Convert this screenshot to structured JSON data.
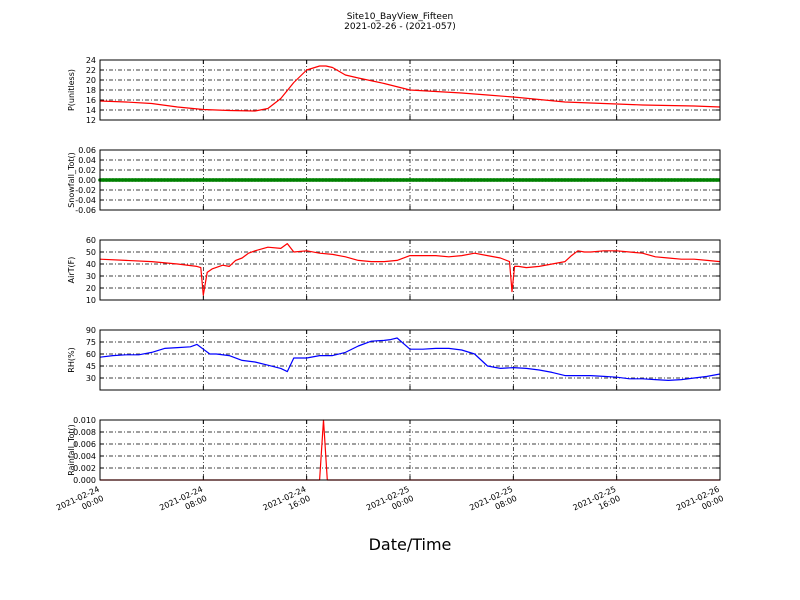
{
  "header": {
    "title": "Site10_BayView_Fifteen",
    "subtitle": "2021-02-26 - (2021-057)"
  },
  "xaxis": {
    "label": "Date/Time",
    "ticks": [
      {
        "x": 0,
        "line1": "2021-02-24",
        "line2": "00:00"
      },
      {
        "x": 8,
        "line1": "2021-02-24",
        "line2": "08:00"
      },
      {
        "x": 16,
        "line1": "2021-02-24",
        "line2": "16:00"
      },
      {
        "x": 24,
        "line1": "2021-02-25",
        "line2": "00:00"
      },
      {
        "x": 32,
        "line1": "2021-02-25",
        "line2": "08:00"
      },
      {
        "x": 40,
        "line1": "2021-02-25",
        "line2": "16:00"
      },
      {
        "x": 48,
        "line1": "2021-02-26",
        "line2": "00:00"
      }
    ]
  },
  "chart_data": [
    {
      "type": "line",
      "ylabel": "P(unitless)",
      "ylim": [
        12,
        24
      ],
      "yticks": [
        "12",
        "14",
        "16",
        "18",
        "20",
        "22",
        "24"
      ],
      "ytick_values": [
        12,
        14,
        16,
        18,
        20,
        22,
        24
      ],
      "color": "#ff0000",
      "grid": true,
      "x": [
        0,
        2,
        4,
        6,
        8,
        10,
        12,
        13,
        14,
        15,
        16,
        17,
        17.5,
        18,
        19,
        20,
        22,
        24,
        26,
        28,
        30,
        32,
        34,
        36,
        38,
        40,
        42,
        44,
        46,
        48
      ],
      "y": [
        15.8,
        15.6,
        15.3,
        14.6,
        14.1,
        13.9,
        13.8,
        14.3,
        16.3,
        19.5,
        22,
        22.8,
        22.8,
        22.5,
        21,
        20.4,
        19.3,
        18,
        17.7,
        17.4,
        17,
        16.6,
        16.1,
        15.6,
        15.4,
        15.2,
        15,
        14.9,
        14.8,
        14.6
      ]
    },
    {
      "type": "scatter",
      "ylabel": "Snowfall_Tot()",
      "ylim": [
        -0.06,
        0.06
      ],
      "yticks": [
        "-0.06",
        "-0.04",
        "-0.02",
        "0.00",
        "0.02",
        "0.04",
        "0.06"
      ],
      "ytick_values": [
        -0.06,
        -0.04,
        -0.02,
        0,
        0.02,
        0.04,
        0.06
      ],
      "color": "#008000",
      "grid": true,
      "x": [
        0,
        1,
        2,
        3,
        4,
        5,
        6,
        7,
        8,
        9,
        10,
        11,
        12,
        13,
        14,
        15,
        16,
        17,
        18,
        19,
        20,
        21,
        22,
        23,
        24,
        25,
        26,
        27,
        28,
        29,
        30,
        31,
        32,
        33,
        34,
        35,
        36,
        37,
        38,
        39,
        40,
        41,
        42,
        43,
        44,
        45,
        46,
        47,
        48
      ],
      "y": [
        0,
        0,
        0,
        0,
        0,
        0,
        0,
        0,
        0,
        0,
        0,
        0,
        0,
        0,
        0,
        0,
        0,
        0,
        0,
        0,
        0,
        0,
        0,
        0,
        0,
        0,
        0,
        0,
        0,
        0,
        0,
        0,
        0,
        0,
        0,
        0,
        0,
        0,
        0,
        0,
        0,
        0,
        0,
        0,
        0,
        0,
        0,
        0,
        0
      ]
    },
    {
      "type": "line",
      "ylabel": "AirT(F)",
      "ylim": [
        10,
        60
      ],
      "yticks": [
        "10",
        "20",
        "30",
        "40",
        "50",
        "60"
      ],
      "ytick_values": [
        10,
        20,
        30,
        40,
        50,
        60
      ],
      "color": "#ff0000",
      "grid": true,
      "x": [
        0,
        2,
        4,
        6,
        7.5,
        7.8,
        8,
        8.3,
        8.7,
        9.5,
        10,
        10.5,
        11,
        11.5,
        12,
        13,
        14,
        14.5,
        15,
        16,
        17,
        18,
        19,
        20,
        21,
        22,
        23,
        24,
        25,
        26,
        27,
        28,
        29,
        30,
        31,
        31.7,
        31.9,
        32.1,
        32.4,
        33,
        34,
        35,
        36,
        36.5,
        37,
        37.5,
        38,
        39,
        40,
        41,
        42,
        43,
        44,
        45,
        46,
        47,
        48
      ],
      "y": [
        44,
        43,
        42,
        40,
        38,
        37,
        14,
        33,
        36,
        39,
        38,
        43,
        45,
        49,
        51,
        54,
        53,
        57,
        50,
        51,
        49,
        48,
        46,
        43,
        42,
        42,
        43,
        47,
        47,
        47,
        46,
        47,
        49,
        47,
        45,
        42,
        17,
        38,
        38,
        37,
        38,
        40,
        42,
        47,
        51,
        50,
        50,
        51,
        51,
        50,
        49,
        46,
        45,
        44,
        44,
        43,
        42
      ]
    },
    {
      "type": "line",
      "ylabel": "RH(%)",
      "ylim": [
        15,
        90
      ],
      "yticks": [
        "30",
        "45",
        "60",
        "75",
        "90"
      ],
      "ytick_values": [
        30,
        45,
        60,
        75,
        90
      ],
      "color": "#0000ff",
      "grid": true,
      "x": [
        0,
        1,
        2,
        3,
        4,
        5,
        6,
        7,
        7.5,
        8,
        8.5,
        9,
        10,
        11,
        12,
        13,
        14,
        14.5,
        15,
        16,
        17,
        18,
        19,
        20,
        21,
        22,
        22.5,
        23,
        24,
        25,
        26,
        27,
        28,
        29,
        30,
        31,
        32,
        33,
        34,
        35,
        36,
        37,
        38,
        39,
        40,
        41,
        42,
        43,
        44,
        45,
        46,
        47,
        48
      ],
      "y": [
        56,
        58,
        59,
        59,
        62,
        67,
        68,
        69,
        72,
        66,
        60,
        60,
        58,
        52,
        50,
        46,
        42,
        38,
        55,
        55,
        58,
        58,
        62,
        70,
        76,
        77,
        78,
        80,
        66,
        66,
        67,
        67,
        65,
        60,
        45,
        42,
        43,
        42,
        40,
        37,
        33,
        33,
        33,
        32,
        31,
        29,
        29,
        28,
        27,
        28,
        30,
        32,
        35
      ]
    },
    {
      "type": "line",
      "ylabel": "Rainfall_Tot()",
      "ylim": [
        0,
        0.01
      ],
      "yticks": [
        "0.000",
        "0.002",
        "0.004",
        "0.006",
        "0.008",
        "0.010"
      ],
      "ytick_values": [
        0,
        0.002,
        0.004,
        0.006,
        0.008,
        0.01
      ],
      "color": "#ff0000",
      "grid": true,
      "x": [
        0,
        17,
        17.3,
        17.6,
        48
      ],
      "y": [
        0,
        0,
        0.01,
        0,
        0
      ]
    }
  ]
}
